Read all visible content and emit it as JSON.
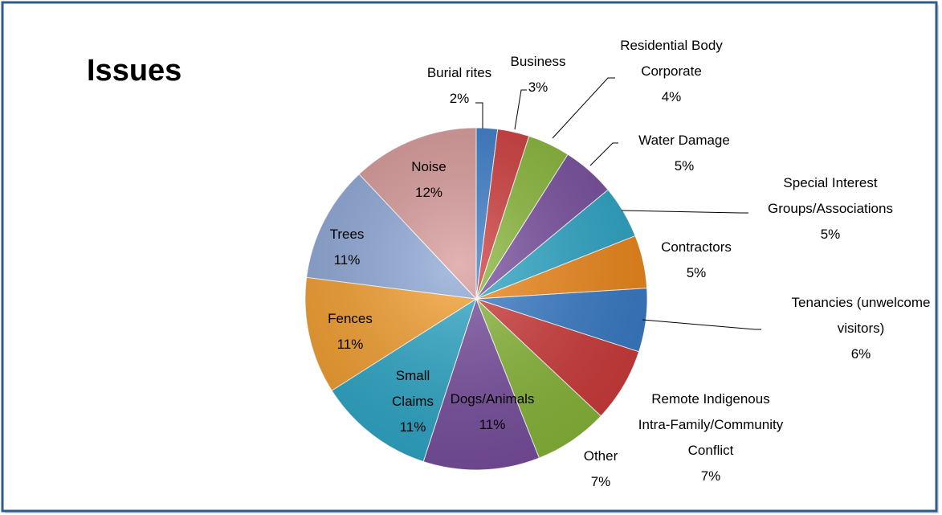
{
  "chart_data": {
    "type": "pie",
    "title": "Issues",
    "categories": [
      "Burial rites",
      "Business",
      "Residential Body Corporate",
      "Water Damage",
      "Special Interest Groups/Associations",
      "Contractors",
      "Tenancies (unwelcome visitors)",
      "Remote Indigenous Intra-Family/Community Conflict",
      "Other",
      "Dogs/Animals",
      "Small Claims",
      "Fences",
      "Trees",
      "Noise"
    ],
    "values": [
      2,
      3,
      4,
      5,
      5,
      5,
      6,
      7,
      7,
      11,
      11,
      11,
      11,
      12
    ],
    "value_labels": [
      "2%",
      "3%",
      "4%",
      "5%",
      "5%",
      "5%",
      "6%",
      "7%",
      "7%",
      "11%",
      "11%",
      "11%",
      "11%",
      "12%"
    ],
    "colors": [
      "#3a7dc9",
      "#d03c3c",
      "#8ab83a",
      "#7a50a0",
      "#2fa8c8",
      "#f08a1c",
      "#3a7dc9",
      "#d03c3c",
      "#8ab83a",
      "#7a50a0",
      "#2fa8c8",
      "#f5a030",
      "#8fa9d8",
      "#d99a9a"
    ]
  }
}
